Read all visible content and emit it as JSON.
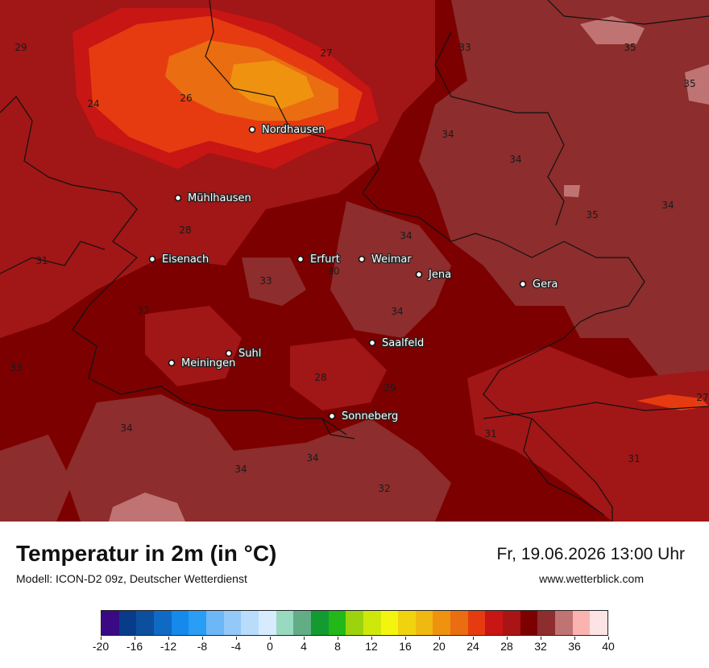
{
  "map": {
    "cities": [
      {
        "name": "Nordhausen"
      },
      {
        "name": "Mühlhausen"
      },
      {
        "name": "Eisenach"
      },
      {
        "name": "Erfurt"
      },
      {
        "name": "Weimar"
      },
      {
        "name": "Jena"
      },
      {
        "name": "Gera"
      },
      {
        "name": "Suhl"
      },
      {
        "name": "Meiningen"
      },
      {
        "name": "Saalfeld"
      },
      {
        "name": "Sonneberg"
      }
    ],
    "isolabels": [
      "29",
      "27",
      "33",
      "35",
      "35",
      "24",
      "26",
      "34",
      "34",
      "35",
      "34",
      "28",
      "34",
      "31",
      "33",
      "30",
      "34",
      "32",
      "33",
      "28",
      "29",
      "27",
      "31",
      "34",
      "34",
      "34",
      "32",
      "31"
    ]
  },
  "footer": {
    "title": "Temperatur in 2m (in °C)",
    "model": "Modell: ICON-D2 09z, Deutscher Wetterdienst",
    "datetime": "Fr, 19.06.2026 13:00 Uhr",
    "website": "www.wetterblick.com"
  },
  "legend": {
    "colors": [
      "#3a0a84",
      "#083c8a",
      "#0b4f9e",
      "#0f6ac4",
      "#1689ec",
      "#2a9df4",
      "#6db7f7",
      "#93c9f9",
      "#b9dcfb",
      "#d6ebfd",
      "#98d9c0",
      "#63ad86",
      "#139a31",
      "#22b81a",
      "#9bd40c",
      "#cfe80c",
      "#f3f50e",
      "#f1d20f",
      "#efb90f",
      "#ef920f",
      "#ea6d11",
      "#e63b10",
      "#c71614",
      "#aa1414",
      "#7c0000",
      "#8d2d2d",
      "#c07373",
      "#fbb3b0",
      "#fde4e4"
    ],
    "ticks": [
      "-20",
      "-16",
      "-12",
      "-8",
      "-4",
      "0",
      "4",
      "8",
      "12",
      "16",
      "20",
      "24",
      "28",
      "32",
      "36",
      "40"
    ]
  }
}
